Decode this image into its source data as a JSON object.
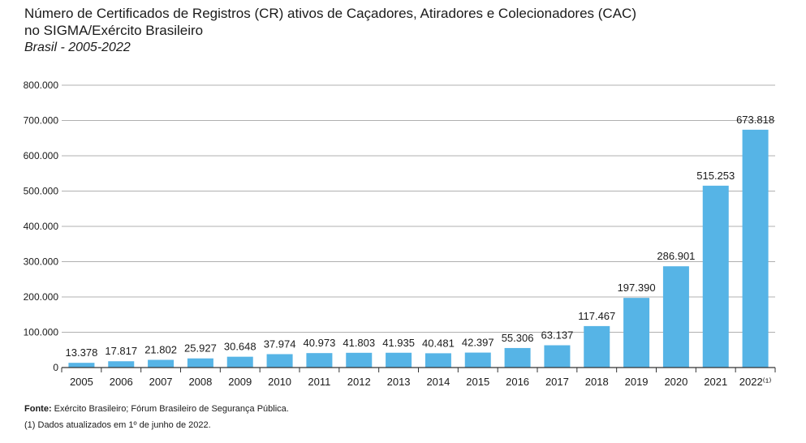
{
  "header": {
    "title_line1": "Número de Certificados de Registros (CR) ativos de Caçadores, Atiradores e Colecionadores (CAC)",
    "title_line2": "no SIGMA/Exército Brasileiro",
    "subtitle": "Brasil - 2005-2022"
  },
  "footer": {
    "source_label": "Fonte:",
    "source_text": "Exército Brasileiro; Fórum Brasileiro de Segurança Pública.",
    "note": "(1) Dados atualizados em 1º de junho de 2022."
  },
  "colors": {
    "bar": "#56b4e6",
    "grid": "#b0b0b0",
    "axis": "#333333"
  },
  "chart_data": {
    "type": "bar",
    "title": "Número de Certificados de Registros (CR) ativos de Caçadores, Atiradores e Colecionadores (CAC) no SIGMA/Exército Brasileiro",
    "subtitle": "Brasil - 2005-2022",
    "xlabel": "",
    "ylabel": "",
    "ylim": [
      0,
      800000
    ],
    "grid": true,
    "legend": "none",
    "y_ticks": [
      0,
      100000,
      200000,
      300000,
      400000,
      500000,
      600000,
      700000,
      800000
    ],
    "y_tick_labels": [
      "0",
      "100.000",
      "200.000",
      "300.000",
      "400.000",
      "500.000",
      "600.000",
      "700.000",
      "800.000"
    ],
    "categories": [
      "2005",
      "2006",
      "2007",
      "2008",
      "2009",
      "2010",
      "2011",
      "2012",
      "2013",
      "2014",
      "2015",
      "2016",
      "2017",
      "2018",
      "2019",
      "2020",
      "2021",
      "2022"
    ],
    "category_labels": [
      "2005",
      "2006",
      "2007",
      "2008",
      "2009",
      "2010",
      "2011",
      "2012",
      "2013",
      "2014",
      "2015",
      "2016",
      "2017",
      "2018",
      "2019",
      "2020",
      "2021",
      "2022⁽¹⁾"
    ],
    "values": [
      13378,
      17817,
      21802,
      25927,
      30648,
      37974,
      40973,
      41803,
      41935,
      40481,
      42397,
      55306,
      63137,
      117467,
      197390,
      286901,
      515253,
      673818
    ],
    "value_labels": [
      "13.378",
      "17.817",
      "21.802",
      "25.927",
      "30.648",
      "37.974",
      "40.973",
      "41.803",
      "41.935",
      "40.481",
      "42.397",
      "55.306",
      "63.137",
      "117.467",
      "197.390",
      "286.901",
      "515.253",
      "673.818"
    ]
  }
}
